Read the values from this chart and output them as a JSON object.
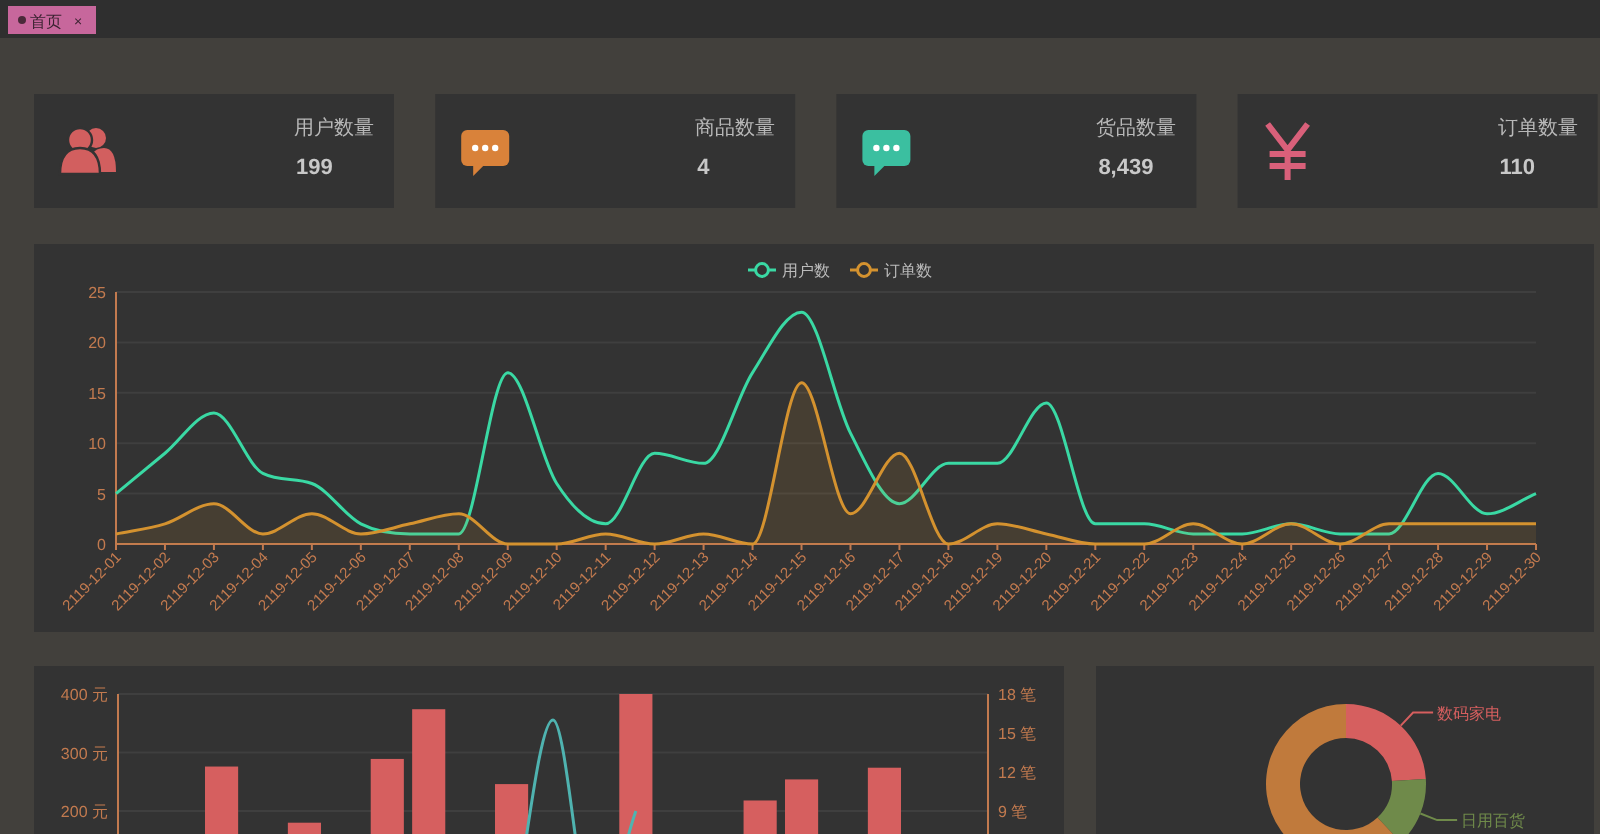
{
  "chart_data": [
    {
      "type": "other",
      "categories": [
        "用户数量",
        "商品数量",
        "货品数量",
        "订单数量"
      ],
      "value_labels": [
        "199",
        "4",
        "8,439",
        "110"
      ],
      "annotations": [
        "首页",
        "×"
      ]
    },
    {
      "type": "line",
      "categories": [
        "2119-12-01",
        "2119-12-02",
        "2119-12-03",
        "2119-12-04",
        "2119-12-05",
        "2119-12-06",
        "2119-12-07",
        "2119-12-08",
        "2119-12-09",
        "2119-12-10",
        "2119-12-11",
        "2119-12-12",
        "2119-12-13",
        "2119-12-14",
        "2119-12-15",
        "2119-12-16",
        "2119-12-17",
        "2119-12-18",
        "2119-12-19",
        "2119-12-20",
        "2119-12-21",
        "2119-12-22",
        "2119-12-23",
        "2119-12-24",
        "2119-12-25",
        "2119-12-26",
        "2119-12-27",
        "2119-12-28",
        "2119-12-29",
        "2119-12-30"
      ],
      "series": [
        {
          "name": "用户数",
          "color": "#3ad9a4",
          "values": [
            5,
            9,
            13,
            7,
            6,
            2,
            1,
            1,
            17,
            6,
            2,
            9,
            8,
            17,
            23,
            11,
            4,
            8,
            8,
            14,
            2,
            2,
            1,
            1,
            2,
            1,
            1,
            7,
            3,
            5
          ]
        },
        {
          "name": "订单数",
          "type": "area",
          "color": "#d4922f",
          "values": [
            1,
            2,
            4,
            1,
            3,
            1,
            2,
            3,
            0,
            0,
            1,
            0,
            1,
            0,
            16,
            3,
            9,
            0,
            2,
            1,
            0,
            0,
            2,
            0,
            2,
            0,
            2,
            2,
            2,
            2
          ]
        }
      ],
      "ylim": [
        0,
        25
      ],
      "yticks": [
        0,
        5,
        10,
        15,
        20,
        25
      ],
      "grid": "y",
      "legend": "top"
    },
    {
      "type": "bar",
      "categories": [
        null,
        null,
        null,
        null,
        null,
        null,
        null,
        null,
        null,
        null,
        null,
        null,
        null,
        null,
        null,
        null,
        null,
        null,
        null,
        null,
        null
      ],
      "series": [
        {
          "color": "#d65f5f",
          "values": [
            null,
            null,
            276,
            null,
            180,
            null,
            289,
            374,
            null,
            246,
            null,
            null,
            400,
            null,
            null,
            218,
            254,
            null,
            274,
            null,
            null
          ]
        },
        {
          "type": "line",
          "axis": "y2",
          "color": "#4fb3b0",
          "values": [
            null,
            null,
            null,
            null,
            null,
            null,
            null,
            null,
            null,
            0,
            16,
            0,
            9,
            null,
            null,
            null,
            null,
            null,
            null,
            null,
            null
          ]
        }
      ],
      "ylim": [
        0,
        400
      ],
      "yticks": [
        {
          "value": 200,
          "label": "200 元"
        },
        {
          "value": 300,
          "label": "300 元"
        },
        {
          "value": 400,
          "label": "400 元"
        }
      ],
      "y2lim": [
        0,
        18
      ],
      "y2ticks": [
        {
          "value": 9,
          "label": "9 笔"
        },
        {
          "value": 12,
          "label": "12 笔"
        },
        {
          "value": 15,
          "label": "15 笔"
        },
        {
          "value": 18,
          "label": "18 笔"
        }
      ],
      "grid": "y"
    },
    {
      "type": "donut",
      "categories": [
        "数码家电",
        "日用百货",
        null
      ],
      "values": [
        24,
        14,
        62
      ],
      "colors": [
        "#d65f5f",
        "#6f8a4a",
        "#c07a3c"
      ]
    }
  ]
}
